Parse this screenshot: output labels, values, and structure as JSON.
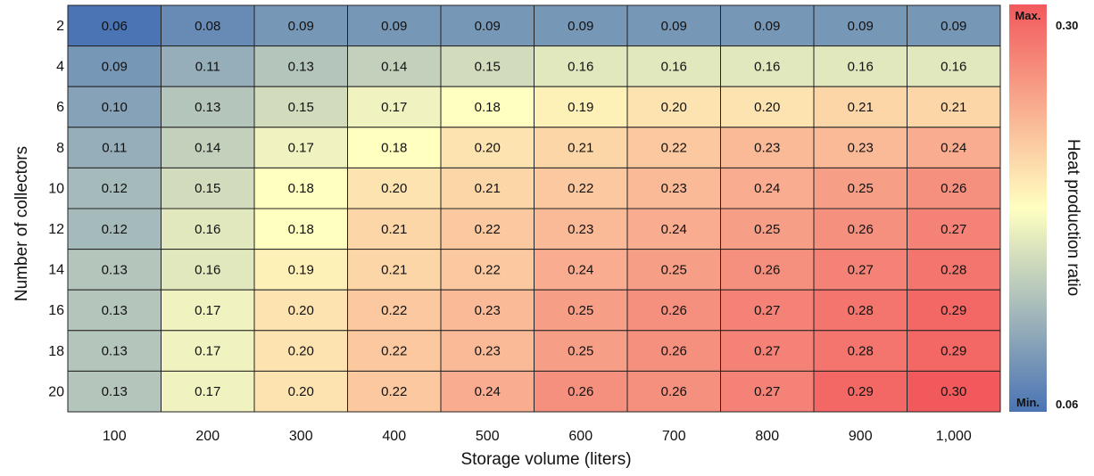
{
  "chart_data": {
    "type": "heatmap",
    "xlabel": "Storage volume (liters)",
    "ylabel": "Number of collectors",
    "x_categories": [
      "100",
      "200",
      "300",
      "400",
      "500",
      "600",
      "700",
      "800",
      "900",
      "1,000"
    ],
    "y_categories": [
      "2",
      "4",
      "6",
      "8",
      "10",
      "12",
      "14",
      "16",
      "18",
      "20"
    ],
    "values": [
      [
        0.06,
        0.08,
        0.09,
        0.09,
        0.09,
        0.09,
        0.09,
        0.09,
        0.09,
        0.09
      ],
      [
        0.09,
        0.11,
        0.13,
        0.14,
        0.15,
        0.16,
        0.16,
        0.16,
        0.16,
        0.16
      ],
      [
        0.1,
        0.13,
        0.15,
        0.17,
        0.18,
        0.19,
        0.2,
        0.2,
        0.21,
        0.21
      ],
      [
        0.11,
        0.14,
        0.17,
        0.18,
        0.2,
        0.21,
        0.22,
        0.23,
        0.23,
        0.24
      ],
      [
        0.12,
        0.15,
        0.18,
        0.2,
        0.21,
        0.22,
        0.23,
        0.24,
        0.25,
        0.26
      ],
      [
        0.12,
        0.16,
        0.18,
        0.21,
        0.22,
        0.23,
        0.24,
        0.25,
        0.26,
        0.27
      ],
      [
        0.13,
        0.16,
        0.19,
        0.21,
        0.22,
        0.24,
        0.25,
        0.26,
        0.27,
        0.28
      ],
      [
        0.13,
        0.17,
        0.2,
        0.22,
        0.23,
        0.25,
        0.26,
        0.27,
        0.28,
        0.29
      ],
      [
        0.13,
        0.17,
        0.2,
        0.22,
        0.23,
        0.25,
        0.26,
        0.27,
        0.28,
        0.29
      ],
      [
        0.13,
        0.17,
        0.2,
        0.22,
        0.24,
        0.26,
        0.26,
        0.27,
        0.29,
        0.3
      ]
    ],
    "colorbar": {
      "label": "Heat production ratio",
      "min": 0.06,
      "max": 0.3,
      "min_text": "0.06",
      "max_text": "0.30",
      "min_tag": "Min.",
      "max_tag": "Max.",
      "colors": [
        "#4a74b4",
        "#ffffc0",
        "#f2595d"
      ]
    }
  }
}
